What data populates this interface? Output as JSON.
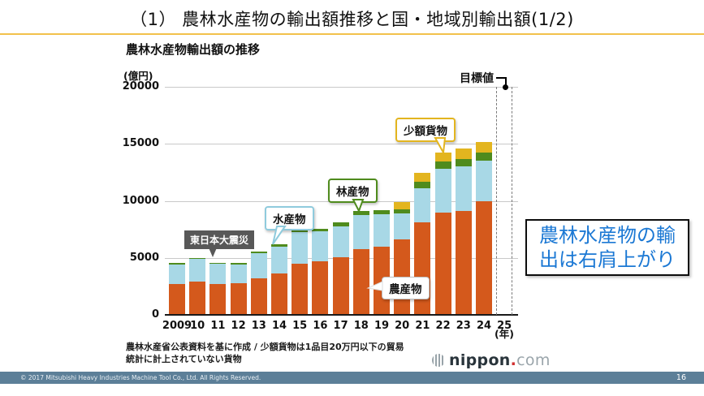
{
  "slide": {
    "title": "（1） 農林水産物の輸出額推移と国・地域別輸出額(1/2)",
    "page_number": "16",
    "footer_copyright": "© 2017 Mitsubishi Heavy Industries Machine Tool Co., Ltd.   All Rights Reserved.",
    "message_box": {
      "line1": "農林水産物の輸",
      "line2": "出は右肩上がり",
      "text_color": "#1b78d4"
    },
    "source_note": {
      "line1": "農林水産省公表資料を基に作成 / 少額貨物は1品目20万円以下の貿易",
      "line2": "統計に計上されていない貨物"
    },
    "logo": {
      "name": "nippon",
      "dot": ".",
      "tld": "com"
    },
    "colors": {
      "title_underline": "#f2c14b",
      "footer_bar": "#5c7f98",
      "logo_red": "#d03030"
    }
  },
  "chart_data": {
    "type": "bar",
    "stacked": true,
    "title": "農林水産物輸出額の推移",
    "y_unit_label": "(億円)",
    "x_unit_label": "(年)",
    "ylim": [
      0,
      20000
    ],
    "y_ticks": [
      0,
      5000,
      10000,
      15000,
      20000
    ],
    "grid": true,
    "legend_position": "callouts-on-chart",
    "categories": [
      "2009",
      "10",
      "11",
      "12",
      "13",
      "14",
      "15",
      "16",
      "17",
      "18",
      "19",
      "20",
      "21",
      "22",
      "23",
      "24",
      "25"
    ],
    "series": [
      {
        "name": "農産物",
        "key": "agricultural-products",
        "color": "#d4591c",
        "values": [
          2637,
          2865,
          2652,
          2680,
          3136,
          3570,
          4431,
          4593,
          4966,
          5661,
          5878,
          6560,
          8041,
          8870,
          9064,
          9863
        ]
      },
      {
        "name": "水産物",
        "key": "marine-products",
        "color": "#a8d8e6",
        "values": [
          1724,
          1950,
          1736,
          1698,
          2216,
          2337,
          2757,
          2640,
          2749,
          3031,
          2873,
          2276,
          3015,
          3873,
          3901,
          3609
        ]
      },
      {
        "name": "林産物",
        "key": "forestry-products",
        "color": "#4f8b1d",
        "values": [
          93,
          106,
          123,
          118,
          152,
          211,
          263,
          268,
          355,
          376,
          370,
          381,
          570,
          638,
          621,
          669
        ]
      },
      {
        "name": "少額貨物",
        "key": "small-value-cargo",
        "color": "#e3b51f",
        "values": [
          0,
          0,
          0,
          0,
          0,
          0,
          0,
          0,
          0,
          0,
          0,
          643,
          759,
          767,
          961,
          932
        ]
      }
    ],
    "totals": [
      4454,
      4921,
      4511,
      4496,
      5504,
      6118,
      7451,
      7501,
      8070,
      9068,
      9121,
      9860,
      12385,
      14148,
      14547,
      15073
    ],
    "target": {
      "label": "目標値",
      "category": "25",
      "value": 20000
    },
    "annotations": {
      "earthquake_label": "東日本大震災",
      "earthquake_category": "11"
    }
  }
}
